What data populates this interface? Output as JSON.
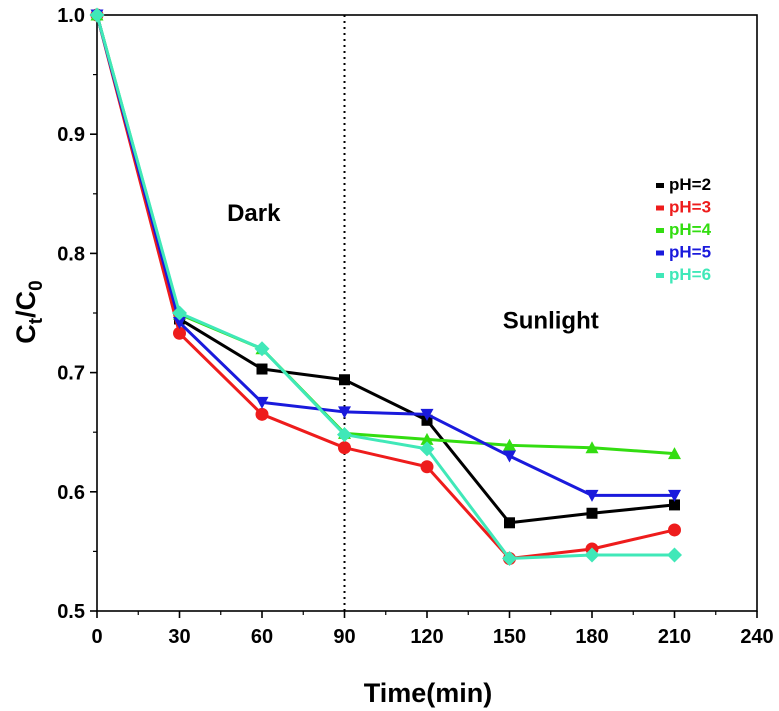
{
  "chart_data": {
    "type": "line",
    "title": "",
    "xlabel": "Time(min)",
    "ylabel": {
      "main": "C",
      "sub1": "t",
      "mid": "/C",
      "sub2": "0"
    },
    "xlim": [
      0,
      240
    ],
    "ylim": [
      0.5,
      1.0
    ],
    "xticks": [
      0,
      30,
      60,
      90,
      120,
      150,
      180,
      210,
      240
    ],
    "yticks": [
      0.5,
      0.6,
      0.7,
      0.8,
      0.9,
      1.0
    ],
    "grid": false,
    "legend_position": "right",
    "x": [
      0,
      30,
      60,
      90,
      120,
      150,
      180,
      210
    ],
    "series": [
      {
        "name": "pH=2",
        "color": "#000000",
        "marker": "square",
        "values": [
          1.0,
          0.745,
          0.703,
          0.694,
          0.66,
          0.574,
          0.582,
          0.589
        ]
      },
      {
        "name": "pH=3",
        "color": "#ee1c1c",
        "marker": "circle",
        "values": [
          1.0,
          0.733,
          0.665,
          0.637,
          0.621,
          0.544,
          0.552,
          0.568
        ]
      },
      {
        "name": "pH=4",
        "color": "#33dd11",
        "marker": "triangle-up",
        "values": [
          1.0,
          0.749,
          0.72,
          0.649,
          0.644,
          0.639,
          0.637,
          0.632
        ]
      },
      {
        "name": "pH=5",
        "color": "#1a1adc",
        "marker": "triangle-down",
        "values": [
          1.0,
          0.742,
          0.675,
          0.667,
          0.665,
          0.63,
          0.597,
          0.597
        ]
      },
      {
        "name": "pH=6",
        "color": "#40e8b8",
        "marker": "diamond",
        "values": [
          1.0,
          0.75,
          0.72,
          0.648,
          0.636,
          0.544,
          0.547,
          0.547
        ]
      }
    ],
    "annotations": [
      {
        "text": "Dark",
        "x": 57,
        "y": 0.827
      },
      {
        "text": "Sunlight",
        "x": 165,
        "y": 0.737
      }
    ],
    "vline": {
      "x": 90,
      "style": "dotted"
    }
  }
}
